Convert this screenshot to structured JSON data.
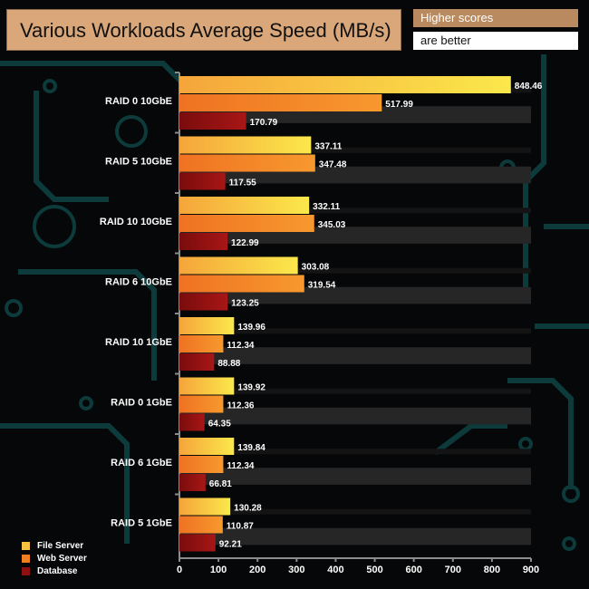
{
  "header": {
    "title": "Various Workloads Average Speed (MB/s)",
    "higher_scores": "Higher scores",
    "are_better": "are better"
  },
  "colors": {
    "file_server": "#f7c23f",
    "web_server": "#f07f22",
    "database": "#8e1010",
    "band": "#262626",
    "axis": "#8c8c8c",
    "decor": "#0d3a3a"
  },
  "chart_data": {
    "type": "bar",
    "orientation": "horizontal",
    "title": "Various Workloads Average Speed (MB/s)",
    "xlabel": "",
    "ylabel": "",
    "xlim": [
      0,
      900
    ],
    "xticks": [
      0,
      100,
      200,
      300,
      400,
      500,
      600,
      700,
      800,
      900
    ],
    "grid": false,
    "legend_position": "bottom-left",
    "categories": [
      "RAID 0 10GbE",
      "RAID 5 10GbE",
      "RAID 10 10GbE",
      "RAID 6 10GbE",
      "RAID 10 1GbE",
      "RAID 0 1GbE",
      "RAID 6 1GbE",
      "RAID 5 1GbE"
    ],
    "series": [
      {
        "name": "File Server",
        "values": [
          848.46,
          337.11,
          332.11,
          303.08,
          139.96,
          139.92,
          139.84,
          130.28
        ]
      },
      {
        "name": "Web Server",
        "values": [
          517.99,
          347.48,
          345.03,
          319.54,
          112.34,
          112.36,
          112.34,
          110.87
        ]
      },
      {
        "name": "Database",
        "values": [
          170.79,
          117.55,
          122.99,
          123.25,
          88.88,
          64.35,
          66.81,
          92.21
        ]
      }
    ]
  }
}
